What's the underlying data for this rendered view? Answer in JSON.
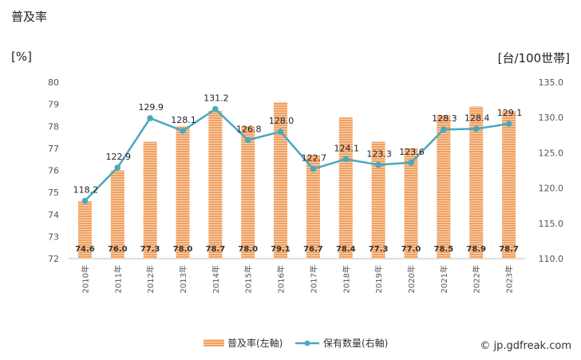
{
  "title": "普及率",
  "unit_left": "[%]",
  "unit_right": "[台/100世帯]",
  "credit": "© jp.gdfreak.com",
  "colors": {
    "bar": "#f0a060",
    "bar_stripe": "#ffffff",
    "line": "#4aa8bf"
  },
  "chart_data": {
    "type": "bar",
    "categories": [
      "2010年",
      "2011年",
      "2012年",
      "2013年",
      "2014年",
      "2015年",
      "2016年",
      "2017年",
      "2018年",
      "2019年",
      "2020年",
      "2021年",
      "2022年",
      "2023年"
    ],
    "y_left": {
      "ylim": [
        72,
        80
      ],
      "ticks": [
        "72",
        "73",
        "74",
        "75",
        "76",
        "77",
        "78",
        "79",
        "80"
      ]
    },
    "y_right": {
      "ylim": [
        110,
        135
      ],
      "ticks": [
        "110.0",
        "115.0",
        "120.0",
        "125.0",
        "130.0",
        "135.0"
      ]
    },
    "series": [
      {
        "name": "普及率(左軸)",
        "type": "bar",
        "axis": "left",
        "values": [
          74.6,
          76.0,
          77.3,
          78.0,
          78.7,
          78.0,
          79.1,
          76.7,
          78.4,
          77.3,
          77.0,
          78.5,
          78.9,
          78.7
        ],
        "labels": [
          "74.6",
          "76.0",
          "77.3",
          "78.0",
          "78.7",
          "78.0",
          "79.1",
          "76.7",
          "78.4",
          "77.3",
          "77.0",
          "78.5",
          "78.9",
          "78.7"
        ]
      },
      {
        "name": "保有数量(右軸)",
        "type": "line",
        "axis": "right",
        "values": [
          118.2,
          122.9,
          129.9,
          128.1,
          131.2,
          126.8,
          128.0,
          122.7,
          124.1,
          123.3,
          123.6,
          128.3,
          128.4,
          129.1
        ],
        "labels": [
          "118.2",
          "122.9",
          "129.9",
          "128.1",
          "131.2",
          "126.8",
          "128.0",
          "122.7",
          "124.1",
          "123.3",
          "123.6",
          "128.3",
          "128.4",
          "129.1"
        ]
      }
    ],
    "grid": false,
    "legend_position": "bottom"
  }
}
